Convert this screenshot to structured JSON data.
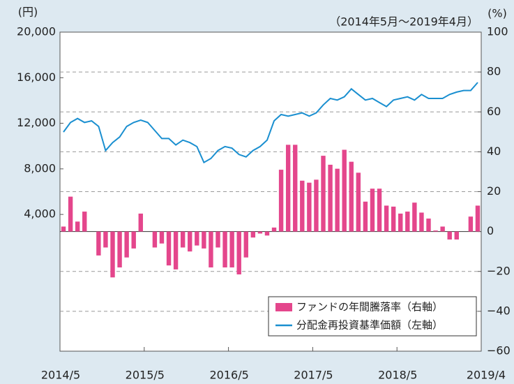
{
  "chart_data": {
    "type": "combo",
    "left_unit": "(円)",
    "right_unit": "(%)",
    "subtitle": "（2014年5月～2019年4月）",
    "categories": [
      "2014/5",
      null,
      null,
      null,
      null,
      null,
      null,
      null,
      null,
      null,
      null,
      null,
      "2015/5",
      null,
      null,
      null,
      null,
      null,
      null,
      null,
      null,
      null,
      null,
      null,
      "2016/5",
      null,
      null,
      null,
      null,
      null,
      null,
      null,
      null,
      null,
      null,
      null,
      "2017/5",
      null,
      null,
      null,
      null,
      null,
      null,
      null,
      null,
      null,
      null,
      null,
      "2018/5",
      null,
      null,
      null,
      null,
      null,
      null,
      null,
      null,
      null,
      null,
      "2019/4"
    ],
    "series": [
      {
        "name": "ファンドの年間騰落率（右軸）",
        "type": "bar",
        "axis": "y2",
        "color": "#e4468c",
        "values": [
          2.5,
          17.5,
          5,
          10,
          0,
          -12,
          -8,
          -23,
          -18,
          -13,
          -8.5,
          9,
          0,
          -8,
          -6,
          -17,
          -19,
          -8,
          -10,
          -7,
          -8.5,
          -18,
          -8,
          -18,
          -18,
          -21.5,
          -13,
          -3,
          -1,
          -2,
          2,
          31,
          43.5,
          43.5,
          25.5,
          24.5,
          26,
          38,
          33.5,
          31.5,
          41,
          35,
          29.5,
          15,
          21.5,
          21.5,
          13,
          12.5,
          9,
          10,
          14.5,
          9.5,
          6.5,
          0.5,
          2.5,
          -4,
          -4,
          0,
          7.5,
          13
        ]
      },
      {
        "name": "分配金再投資基準価額（左軸）",
        "type": "line",
        "axis": "y",
        "color": "#1a8fd0",
        "values": [
          11230,
          12070,
          12420,
          12070,
          12210,
          11720,
          9610,
          10310,
          10800,
          11720,
          12070,
          12280,
          12070,
          11370,
          10660,
          10660,
          10100,
          10520,
          10310,
          9960,
          8560,
          8910,
          9610,
          9960,
          9820,
          9260,
          9050,
          9610,
          9960,
          10520,
          12210,
          12770,
          12630,
          12770,
          12910,
          12630,
          12910,
          13610,
          14180,
          14040,
          14320,
          15020,
          14530,
          14040,
          14180,
          13820,
          13470,
          14040,
          14180,
          14320,
          14040,
          14530,
          14180,
          14180,
          14180,
          14530,
          14740,
          14880,
          14880,
          15580
        ]
      }
    ],
    "ylim": [
      -8000,
      20000
    ],
    "yticks": [
      {
        "value": 4000,
        "label": "4,000"
      },
      {
        "value": 8000,
        "label": "8,000"
      },
      {
        "value": 12000,
        "label": "12,000"
      },
      {
        "value": 16000,
        "label": "16,000"
      },
      {
        "value": 20000,
        "label": "20,000"
      }
    ],
    "y2lim": [
      -60,
      100
    ],
    "y2ticks": [
      {
        "value": -60,
        "label": "−60"
      },
      {
        "value": -40,
        "label": "−40"
      },
      {
        "value": -20,
        "label": "−20"
      },
      0,
      20,
      40,
      60,
      80,
      100
    ],
    "grid": true,
    "legend": "lower right"
  }
}
